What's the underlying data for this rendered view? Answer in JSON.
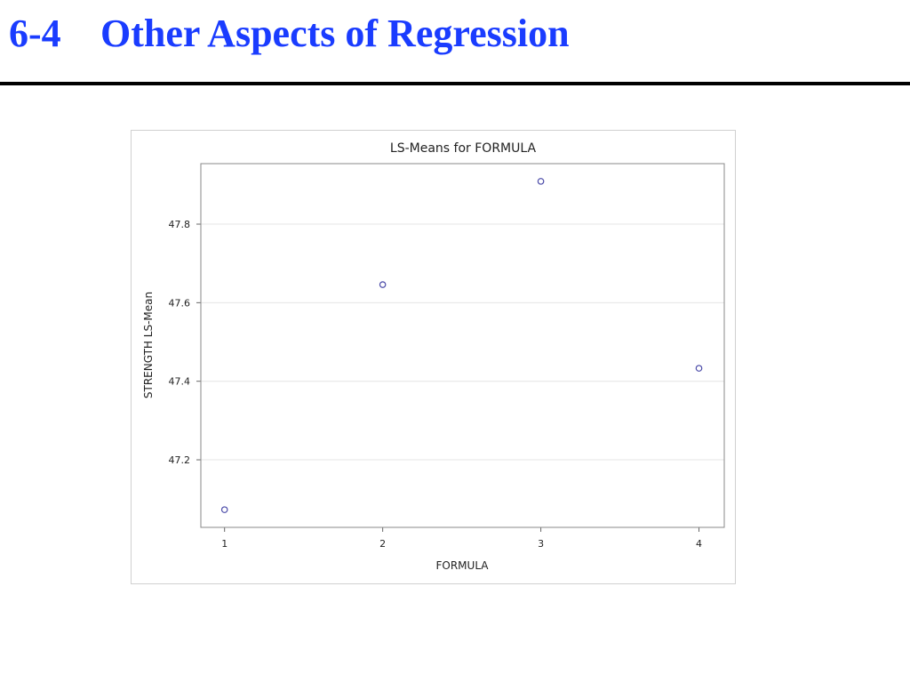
{
  "header": {
    "number": "6-4",
    "title": "Other Aspects of Regression"
  },
  "chart_data": {
    "type": "scatter",
    "title": "LS-Means for FORMULA",
    "x_label": "FORMULA",
    "y_label": "STRENGTH LS-Mean",
    "x": [
      1,
      2,
      3,
      4
    ],
    "values": [
      47.073,
      47.646,
      47.909,
      47.433
    ],
    "color": "#4a4aa8",
    "marker": "hollow-circle",
    "xlim": [
      0.85,
      4.16
    ],
    "xticks": [
      1,
      2,
      3,
      4
    ],
    "ylim": [
      47.028,
      47.954
    ],
    "yticks": [
      47.2,
      47.4,
      47.6,
      47.8
    ],
    "grid": true
  }
}
